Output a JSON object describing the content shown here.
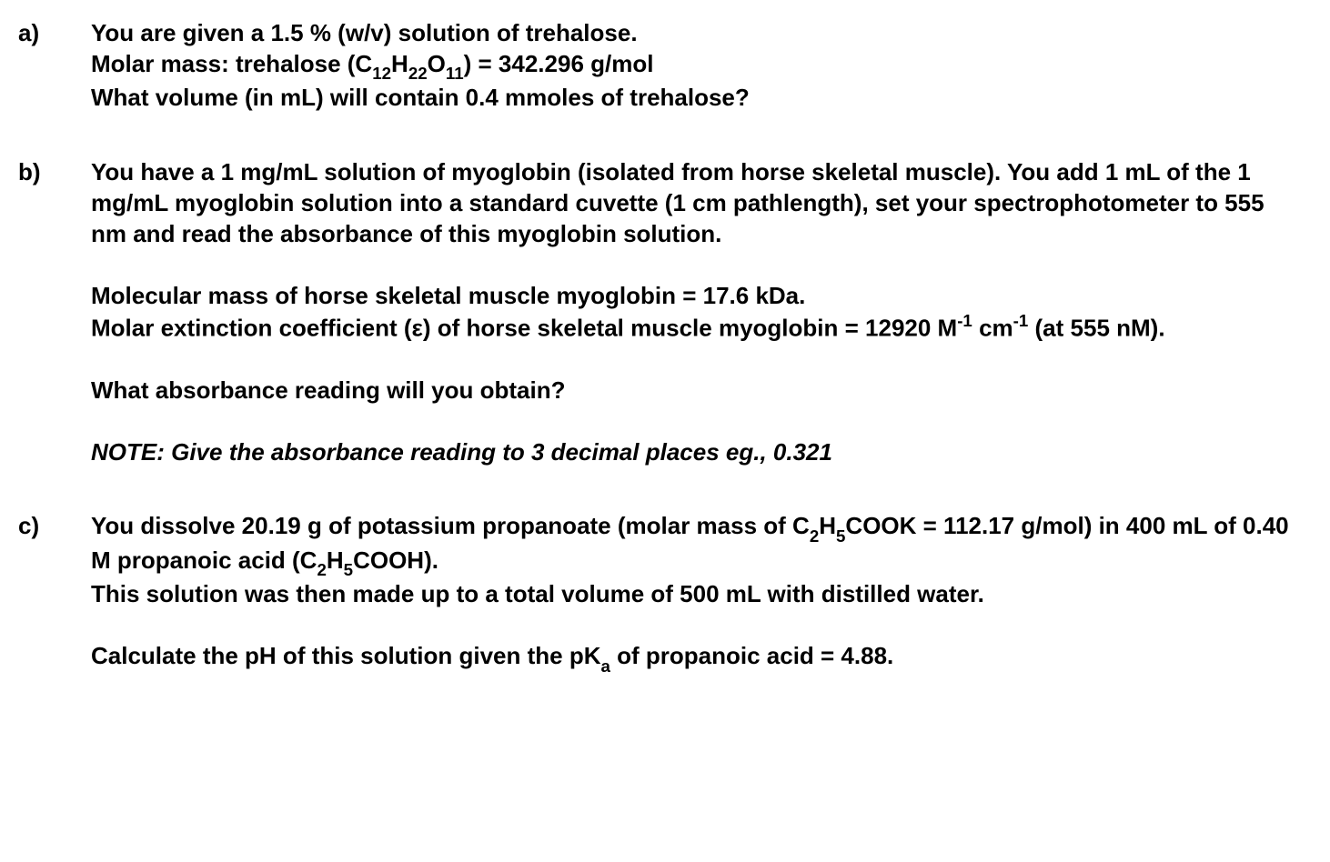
{
  "questions": {
    "a": {
      "label": "a)",
      "line1_part1": "You are given a 1.5 % (w/v) solution of trehalose.",
      "line2_part1": "Molar mass: trehalose (C",
      "line2_sub1": "12",
      "line2_part2": "H",
      "line2_sub2": "22",
      "line2_part3": "O",
      "line2_sub3": "11",
      "line2_part4": ") = 342.296 g/mol",
      "line3": "What volume (in mL) will contain 0.4 mmoles of trehalose?"
    },
    "b": {
      "label": "b)",
      "p1": "You have a 1 mg/mL solution of myoglobin (isolated from horse skeletal muscle). You add 1 mL of the 1 mg/mL myoglobin solution into a standard cuvette (1 cm pathlength), set your spectrophotometer to 555 nm and read the absorbance of this myoglobin solution.",
      "p2_line1": "Molecular mass of horse skeletal muscle myoglobin = 17.6 kDa.",
      "p2_line2_part1": "Molar extinction coefficient (ε) of horse skeletal muscle myoglobin = 12920 M",
      "p2_line2_sup1": "-1",
      "p2_line2_part2": " cm",
      "p2_line2_sup2": "-1",
      "p2_line2_part3": " (at 555 nM).",
      "p3": "What absorbance reading will you obtain?",
      "p4": "NOTE: Give the absorbance reading to 3 decimal places eg., 0.321"
    },
    "c": {
      "label": "c)",
      "p1_part1": "You dissolve 20.19 g of potassium propanoate (molar mass of C",
      "p1_sub1": "2",
      "p1_part2": "H",
      "p1_sub2": "5",
      "p1_part3": "COOK = 112.17 g/mol) in 400 mL of 0.40 M propanoic acid (C",
      "p1_sub3": "2",
      "p1_part4": "H",
      "p1_sub4": "5",
      "p1_part5": "COOH).",
      "p1_line2": "This solution was then made up to a total volume of 500 mL with distilled water.",
      "p2_part1": "Calculate the pH of this solution given the pK",
      "p2_sub1": "a",
      "p2_part2": " of propanoic acid = 4.88."
    }
  }
}
